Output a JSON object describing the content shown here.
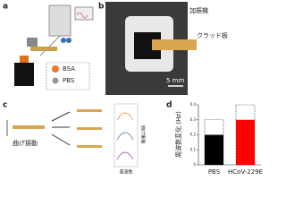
{
  "panels": {
    "a": {
      "label": "a",
      "legend": [
        "BSA",
        "PBS"
      ]
    },
    "b": {
      "label": "b",
      "annotations": [
        "加振機",
        "クラッド板"
      ],
      "scale_bar": "5 mm"
    },
    "c": {
      "label": "c",
      "caption": "曲げ振動",
      "plot_ylabel": "曲げ振幅",
      "plot_xlabel": "周波数"
    }
  },
  "chart_data": {
    "type": "bar",
    "panel_label": "d",
    "ylabel": "周波数変化 (Hz)",
    "categories": [
      "PBS",
      "HCoV-229E"
    ],
    "values": [
      0.2,
      0.3
    ],
    "range_max": [
      0.3,
      0.4
    ],
    "colors": [
      "#000000",
      "#ff0000"
    ],
    "ylim": [
      0,
      0.4
    ],
    "yticks": [
      0,
      0.1,
      0.2,
      0.3,
      0.4
    ]
  }
}
